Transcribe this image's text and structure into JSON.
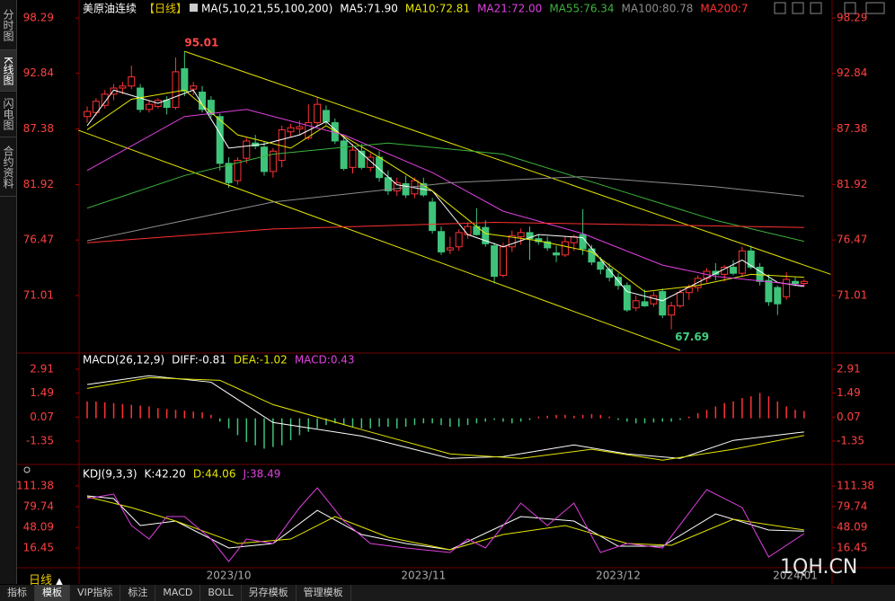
{
  "chart_data": [
    {
      "type": "candlestick",
      "title": "美原油连续",
      "period_label": "【日线】",
      "indicator": "MA(5,10,21,55,100,200)",
      "up_color": "#ff3232",
      "down_color": "#3ec47a",
      "ylim": [
        65.45,
        99.17
      ],
      "yticks": [
        98.29,
        92.84,
        87.38,
        81.92,
        76.47,
        71.01
      ],
      "categories": [
        null,
        null,
        null,
        null,
        null,
        null,
        null,
        null,
        null,
        null,
        null,
        null,
        null,
        null,
        null,
        null,
        "2023/10",
        null,
        null,
        null,
        null,
        null,
        null,
        null,
        null,
        null,
        null,
        null,
        null,
        null,
        null,
        null,
        null,
        null,
        null,
        null,
        null,
        null,
        "2023/11",
        null,
        null,
        null,
        null,
        null,
        null,
        null,
        null,
        null,
        null,
        null,
        null,
        null,
        null,
        null,
        null,
        null,
        null,
        null,
        null,
        null,
        "2023/12",
        null,
        null,
        null,
        null,
        null,
        null,
        null,
        null,
        null,
        null,
        null,
        null,
        null,
        null,
        null,
        null,
        null,
        null,
        null,
        "2024/01",
        null
      ],
      "candles": [
        [
          88.6,
          89.6,
          88.0,
          89.1
        ],
        [
          89.0,
          90.4,
          88.7,
          90.1
        ],
        [
          89.7,
          91.2,
          89.4,
          90.8
        ],
        [
          90.8,
          91.8,
          90.2,
          91.4
        ],
        [
          91.4,
          92.0,
          90.8,
          91.6
        ],
        [
          91.6,
          93.6,
          91.3,
          92.5
        ],
        [
          91.4,
          91.8,
          89.0,
          89.3
        ],
        [
          89.3,
          90.2,
          89.0,
          89.8
        ],
        [
          89.6,
          90.4,
          89.4,
          90.2
        ],
        [
          90.2,
          90.6,
          88.8,
          89.5
        ],
        [
          89.5,
          94.4,
          89.3,
          93.0
        ],
        [
          93.3,
          95.01,
          90.6,
          91.1
        ],
        [
          91.3,
          92.0,
          90.7,
          91.6
        ],
        [
          91.0,
          91.6,
          89.0,
          89.3
        ],
        [
          90.2,
          90.6,
          88.5,
          88.8
        ],
        [
          88.6,
          88.9,
          83.3,
          84.0
        ],
        [
          84.0,
          84.6,
          81.6,
          82.1
        ],
        [
          82.3,
          84.6,
          81.9,
          84.3
        ],
        [
          84.5,
          86.5,
          84.0,
          86.2
        ],
        [
          86.0,
          86.8,
          85.4,
          85.7
        ],
        [
          85.6,
          86.2,
          82.8,
          83.2
        ],
        [
          83.2,
          85.5,
          82.6,
          85.2
        ],
        [
          84.3,
          87.7,
          83.6,
          87.3
        ],
        [
          87.1,
          87.9,
          86.6,
          87.5
        ],
        [
          87.4,
          88.2,
          86.8,
          87.6
        ],
        [
          86.5,
          89.8,
          86.3,
          88.0
        ],
        [
          88.0,
          90.5,
          87.7,
          89.8
        ],
        [
          89.2,
          89.7,
          87.8,
          88.1
        ],
        [
          88.0,
          88.4,
          85.9,
          86.2
        ],
        [
          86.2,
          86.5,
          83.3,
          83.5
        ],
        [
          83.6,
          85.9,
          83.0,
          85.3
        ],
        [
          85.2,
          85.9,
          83.4,
          83.6
        ],
        [
          83.6,
          85.0,
          83.2,
          84.6
        ],
        [
          84.6,
          85.2,
          82.2,
          82.6
        ],
        [
          82.6,
          83.3,
          80.9,
          81.3
        ],
        [
          81.3,
          82.6,
          80.8,
          82.1
        ],
        [
          82.0,
          82.8,
          80.6,
          80.9
        ],
        [
          81.0,
          82.6,
          80.6,
          82.3
        ],
        [
          82.0,
          82.6,
          80.7,
          80.9
        ],
        [
          80.2,
          80.6,
          77.1,
          77.4
        ],
        [
          77.3,
          77.8,
          75.0,
          75.3
        ],
        [
          75.5,
          76.8,
          75.1,
          75.7
        ],
        [
          75.8,
          77.5,
          75.4,
          77.2
        ],
        [
          77.0,
          78.2,
          76.6,
          77.8
        ],
        [
          77.8,
          79.6,
          76.9,
          77.0
        ],
        [
          77.7,
          78.4,
          75.8,
          76.1
        ],
        [
          75.9,
          76.2,
          72.2,
          72.9
        ],
        [
          73.0,
          76.2,
          72.8,
          75.8
        ],
        [
          75.8,
          77.4,
          75.3,
          76.9
        ],
        [
          76.8,
          77.6,
          76.0,
          77.2
        ],
        [
          77.2,
          77.8,
          74.5,
          76.6
        ],
        [
          76.6,
          77.0,
          76.0,
          76.3
        ],
        [
          76.3,
          76.8,
          75.4,
          75.7
        ],
        [
          75.2,
          75.9,
          74.3,
          75.0
        ],
        [
          75.0,
          76.8,
          74.8,
          76.3
        ],
        [
          76.2,
          77.0,
          75.4,
          76.8
        ],
        [
          77.0,
          79.5,
          75.0,
          75.6
        ],
        [
          75.6,
          76.0,
          74.0,
          74.3
        ],
        [
          74.3,
          74.8,
          73.1,
          73.6
        ],
        [
          73.6,
          74.2,
          72.4,
          72.8
        ],
        [
          72.8,
          73.2,
          71.6,
          72.0
        ],
        [
          72.0,
          72.3,
          69.4,
          69.6
        ],
        [
          69.8,
          71.0,
          69.5,
          70.5
        ],
        [
          70.4,
          71.6,
          69.9,
          70.0
        ],
        [
          70.2,
          71.4,
          69.9,
          71.0
        ],
        [
          71.4,
          71.7,
          68.8,
          69.1
        ],
        [
          69.1,
          70.4,
          67.69,
          70.0
        ],
        [
          70.0,
          71.6,
          69.8,
          71.3
        ],
        [
          71.3,
          72.1,
          70.6,
          71.8
        ],
        [
          71.8,
          73.0,
          71.4,
          72.7
        ],
        [
          72.7,
          73.7,
          72.3,
          73.4
        ],
        [
          73.4,
          74.2,
          72.5,
          73.1
        ],
        [
          73.1,
          74.0,
          72.4,
          73.8
        ],
        [
          73.8,
          74.5,
          73.0,
          73.2
        ],
        [
          73.2,
          75.8,
          72.9,
          75.4
        ],
        [
          75.4,
          75.9,
          73.6,
          73.8
        ],
        [
          73.8,
          74.2,
          72.0,
          72.4
        ],
        [
          72.5,
          73.1,
          70.0,
          70.4
        ],
        [
          71.8,
          72.0,
          69.1,
          70.2
        ],
        [
          70.9,
          73.3,
          70.6,
          72.6
        ],
        [
          72.4,
          72.8,
          71.9,
          72.2
        ],
        [
          72.2,
          72.6,
          71.9,
          72.4
        ]
      ],
      "high_label": 95.01,
      "low_label": 67.69,
      "trendlines": [
        {
          "color": "#e6e600",
          "x": [
            11,
            84
          ],
          "values": [
            95.01,
            73.1
          ]
        },
        {
          "color": "#e6e600",
          "x": [
            -1,
            67
          ],
          "values": [
            87.26,
            65.63
          ]
        }
      ],
      "series": [
        {
          "name": "MA5:71.90",
          "color": "#ffffff",
          "x": [
            0,
            3,
            8,
            12,
            16,
            20,
            24,
            27,
            31,
            35,
            39,
            43,
            47,
            51,
            56,
            61,
            65,
            69,
            74,
            78,
            81
          ],
          "values": [
            87.7,
            91.2,
            89.9,
            91.2,
            85.5,
            85.9,
            86.8,
            88.1,
            85.0,
            81.9,
            81.3,
            77.0,
            75.8,
            77.0,
            76.7,
            71.4,
            70.5,
            72.3,
            74.5,
            72.3,
            71.9
          ]
        },
        {
          "name": "MA10:72.81",
          "color": "#e6e600",
          "x": [
            0,
            5,
            11,
            17,
            23,
            27,
            33,
            39,
            45,
            51,
            57,
            63,
            69,
            75,
            81
          ],
          "values": [
            87.3,
            90.3,
            91.2,
            86.8,
            85.5,
            87.7,
            84.6,
            81.3,
            77.1,
            76.4,
            75.3,
            71.4,
            72.0,
            73.1,
            72.81
          ]
        },
        {
          "name": "MA21:72.00",
          "color": "#e040e0",
          "x": [
            0,
            11,
            18,
            29,
            39,
            47,
            56,
            65,
            71,
            81
          ],
          "values": [
            83.3,
            88.6,
            89.3,
            86.8,
            83.1,
            79.3,
            77.1,
            74.0,
            72.9,
            72.0
          ]
        },
        {
          "name": "MA55:76.34",
          "color": "#3cb43c",
          "x": [
            0,
            11,
            21,
            34,
            47,
            61,
            71,
            81
          ],
          "values": [
            79.6,
            82.8,
            84.9,
            86.0,
            84.9,
            81.1,
            78.4,
            76.34
          ]
        },
        {
          "name": "MA100:80.78",
          "color": "#8c8c8c",
          "x": [
            0,
            21,
            41,
            56,
            71,
            81
          ],
          "values": [
            76.4,
            80.2,
            82.1,
            82.7,
            81.7,
            80.78
          ]
        },
        {
          "name": "MA200:7",
          "color": "#ff3030",
          "x": [
            0,
            21,
            46,
            61,
            81
          ],
          "values": [
            76.2,
            77.55,
            78.2,
            78.0,
            77.7
          ]
        }
      ]
    },
    {
      "type": "macd",
      "title": "MACD(26,12,9)",
      "ylim": [
        -2.63,
        3.76
      ],
      "yticks": [
        2.91,
        1.49,
        0.07,
        -1.35
      ],
      "series": [
        {
          "name": "DIFF:-0.81",
          "color": "#ffffff",
          "x": [
            0,
            7,
            14,
            21,
            31,
            41,
            47,
            55,
            61,
            67,
            73,
            81
          ],
          "values": [
            2.0,
            2.52,
            2.14,
            -0.25,
            -1.05,
            -2.38,
            -2.27,
            -1.58,
            -2.11,
            -2.38,
            -1.31,
            -0.81
          ]
        },
        {
          "name": "DEA:-1.02",
          "color": "#e6e600",
          "x": [
            0,
            7,
            15,
            21,
            31,
            41,
            49,
            57,
            65,
            73,
            81
          ],
          "values": [
            1.77,
            2.41,
            2.25,
            0.81,
            -0.67,
            -2.11,
            -2.38,
            -1.84,
            -2.48,
            -1.84,
            -1.02
          ]
        }
      ],
      "bars": {
        "name": "MACD:0.43",
        "color": "#e040e0",
        "up_color": "#ff3232",
        "down_color": "#3ec47a",
        "values": [
          1.0,
          1.0,
          0.95,
          0.9,
          0.85,
          0.8,
          0.75,
          0.7,
          0.6,
          0.55,
          0.5,
          0.45,
          0.4,
          0.35,
          0.2,
          -0.2,
          -0.6,
          -1.0,
          -1.4,
          -1.6,
          -1.8,
          -1.7,
          -1.6,
          -1.3,
          -1.0,
          -0.8,
          -0.6,
          -0.4,
          -0.3,
          -0.4,
          -0.5,
          -0.6,
          -0.6,
          -0.5,
          -0.5,
          -0.6,
          -0.5,
          -0.4,
          -0.3,
          -0.3,
          -0.4,
          -0.5,
          -0.5,
          -0.4,
          -0.3,
          -0.2,
          -0.1,
          -0.2,
          -0.3,
          -0.2,
          -0.1,
          0.1,
          0.15,
          0.2,
          0.2,
          0.15,
          0.2,
          0.25,
          0.2,
          0.1,
          -0.1,
          -0.2,
          -0.3,
          -0.3,
          -0.25,
          -0.2,
          -0.2,
          -0.1,
          0.1,
          0.3,
          0.5,
          0.7,
          0.9,
          1.0,
          1.2,
          1.3,
          1.5,
          1.3,
          1.0,
          0.7,
          0.5,
          0.43
        ]
      }
    },
    {
      "type": "line",
      "title": "KDJ(9,3,3)",
      "ylim": [
        -11.06,
        140.3
      ],
      "yticks": [
        111.38,
        79.74,
        48.09,
        16.45
      ],
      "series": [
        {
          "name": "K:42.20",
          "color": "#ffffff",
          "x": [
            0,
            3,
            6,
            10,
            16,
            21,
            26,
            31,
            36,
            41,
            49,
            55,
            60,
            65,
            71,
            77,
            81
          ],
          "values": [
            96.2,
            92.1,
            50.9,
            57.7,
            16.5,
            23.3,
            74.2,
            37.1,
            23.3,
            13.7,
            64.6,
            57.7,
            19.2,
            19.2,
            68.7,
            44.0,
            42.2
          ]
        },
        {
          "name": "D:44.06",
          "color": "#e6e600",
          "x": [
            0,
            5,
            10,
            17,
            23,
            28,
            34,
            41,
            47,
            54,
            61,
            66,
            73,
            81
          ],
          "values": [
            94.9,
            78.4,
            57.7,
            23.3,
            30.2,
            64.6,
            33.0,
            13.7,
            37.1,
            50.9,
            23.3,
            20.6,
            60.5,
            44.06
          ]
        },
        {
          "name": "J:38.49",
          "color": "#e040e0",
          "x": [
            0,
            3,
            5,
            7,
            9,
            11,
            14,
            16,
            18,
            21,
            24,
            26,
            29,
            32,
            36,
            41,
            43,
            45,
            49,
            52,
            55,
            58,
            61,
            65,
            70,
            74,
            77,
            81
          ],
          "values": [
            92.1,
            99,
            50.9,
            30.2,
            64.6,
            64.6,
            30.2,
            -4.2,
            30.2,
            23.3,
            78.4,
            108.6,
            57.7,
            23.3,
            16.5,
            9.6,
            30.2,
            16.5,
            85.2,
            50.9,
            85.2,
            9.6,
            23.3,
            16.5,
            105.9,
            78.4,
            2.7,
            38.49
          ]
        }
      ]
    }
  ],
  "ui": {
    "side_tabs": [
      "分时图",
      "K线图",
      "闪电图",
      "合约资料"
    ],
    "period": "日线",
    "bottom_tabs": [
      "指标",
      "模板",
      "VIP指标",
      "标注",
      "MACD",
      "BOLL",
      "另存模板",
      "管理模板"
    ],
    "watermark": "1QH.CN"
  }
}
